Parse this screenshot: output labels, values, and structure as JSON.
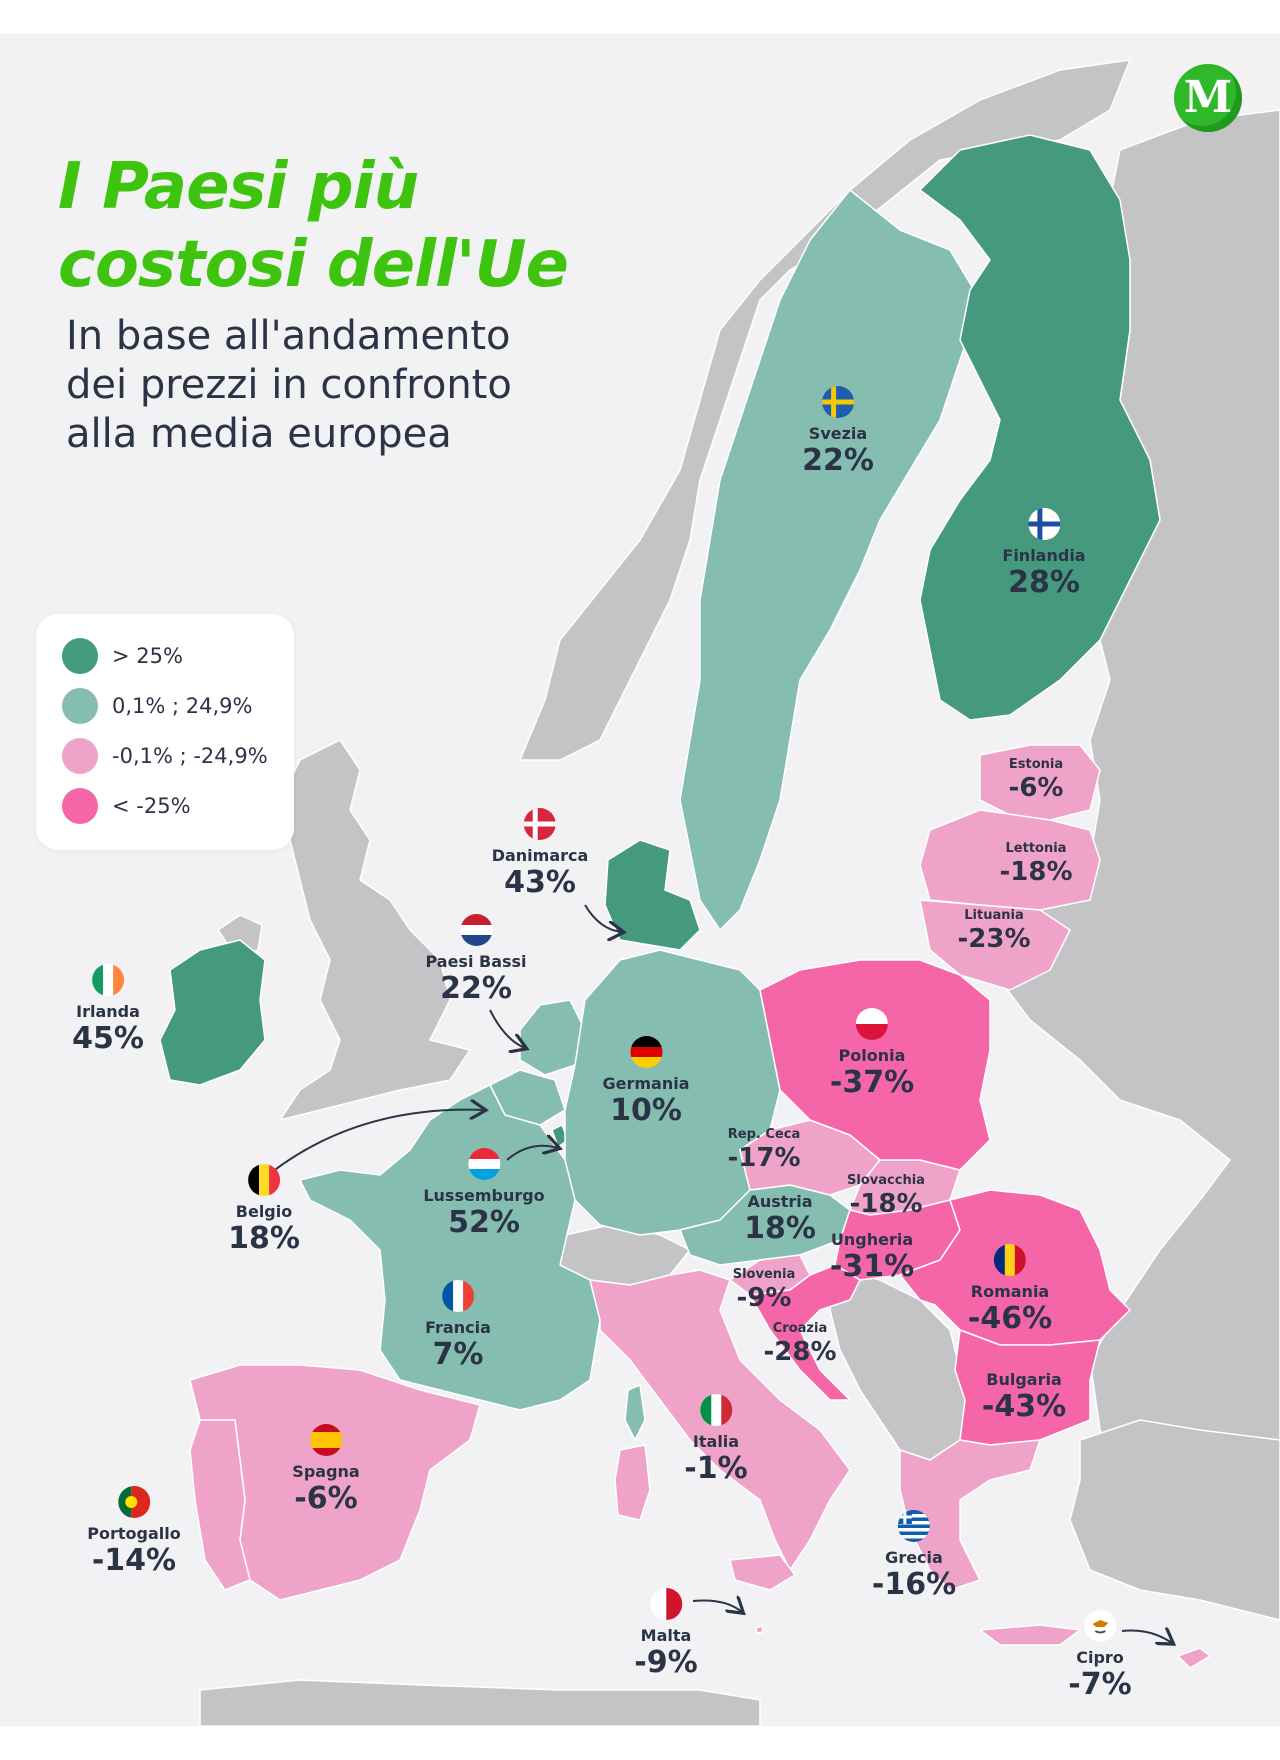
{
  "header": {
    "title_line1": "I Paesi più",
    "title_line2": "costosi dell'Ue",
    "subtitle_line1": "In base all'andamento",
    "subtitle_line2": "dei prezzi in confronto",
    "subtitle_line3": "alla media europea",
    "logo_letter": "M"
  },
  "legend": {
    "items": [
      {
        "label": "> 25%",
        "color": "#45997f"
      },
      {
        "label": "0,1% ; 24,9%",
        "color": "#86bdb1"
      },
      {
        "label": "-0,1% ; -24,9%",
        "color": "#efa3c8"
      },
      {
        "label": "< -25%",
        "color": "#f566a9"
      }
    ]
  },
  "colors": {
    "background": "#f2f2f4",
    "sea": "#f2f2f4",
    "non_eu_land": "#c4c4c6",
    "title": "#3ec40f",
    "text": "#2b3346",
    "logo": "#2fb82a"
  },
  "countries": {
    "svezia": {
      "name": "Svezia",
      "value": "22%",
      "category": 2
    },
    "finlandia": {
      "name": "Finlandia",
      "value": "28%",
      "category": 1
    },
    "estonia": {
      "name": "Estonia",
      "value": "-6%",
      "category": 3
    },
    "lettonia": {
      "name": "Lettonia",
      "value": "-18%",
      "category": 3
    },
    "lituania": {
      "name": "Lituania",
      "value": "-23%",
      "category": 3
    },
    "danimarca": {
      "name": "Danimarca",
      "value": "43%",
      "category": 1
    },
    "paesi_bassi": {
      "name": "Paesi Bassi",
      "value": "22%",
      "category": 2
    },
    "irlanda": {
      "name": "Irlanda",
      "value": "45%",
      "category": 1
    },
    "germania": {
      "name": "Germania",
      "value": "10%",
      "category": 2
    },
    "polonia": {
      "name": "Polonia",
      "value": "-37%",
      "category": 4
    },
    "rep_ceca": {
      "name": "Rep. Ceca",
      "value": "-17%",
      "category": 3
    },
    "slovacchia": {
      "name": "Slovacchia",
      "value": "-18%",
      "category": 3
    },
    "austria": {
      "name": "Austria",
      "value": "18%",
      "category": 2
    },
    "ungheria": {
      "name": "Ungheria",
      "value": "-31%",
      "category": 4
    },
    "slovenia": {
      "name": "Slovenia",
      "value": "-9%",
      "category": 3
    },
    "croazia": {
      "name": "Croazia",
      "value": "-28%",
      "category": 4
    },
    "romania": {
      "name": "Romania",
      "value": "-46%",
      "category": 4
    },
    "bulgaria": {
      "name": "Bulgaria",
      "value": "-43%",
      "category": 4
    },
    "belgio": {
      "name": "Belgio",
      "value": "18%",
      "category": 2
    },
    "lussemburgo": {
      "name": "Lussemburgo",
      "value": "52%",
      "category": 1
    },
    "francia": {
      "name": "Francia",
      "value": "7%",
      "category": 2
    },
    "spagna": {
      "name": "Spagna",
      "value": "-6%",
      "category": 3
    },
    "portogallo": {
      "name": "Portogallo",
      "value": "-14%",
      "category": 3
    },
    "italia": {
      "name": "Italia",
      "value": "-1%",
      "category": 3
    },
    "grecia": {
      "name": "Grecia",
      "value": "-16%",
      "category": 3
    },
    "malta": {
      "name": "Malta",
      "value": "-9%",
      "category": 3
    },
    "cipro": {
      "name": "Cipro",
      "value": "-7%",
      "category": 3
    }
  }
}
